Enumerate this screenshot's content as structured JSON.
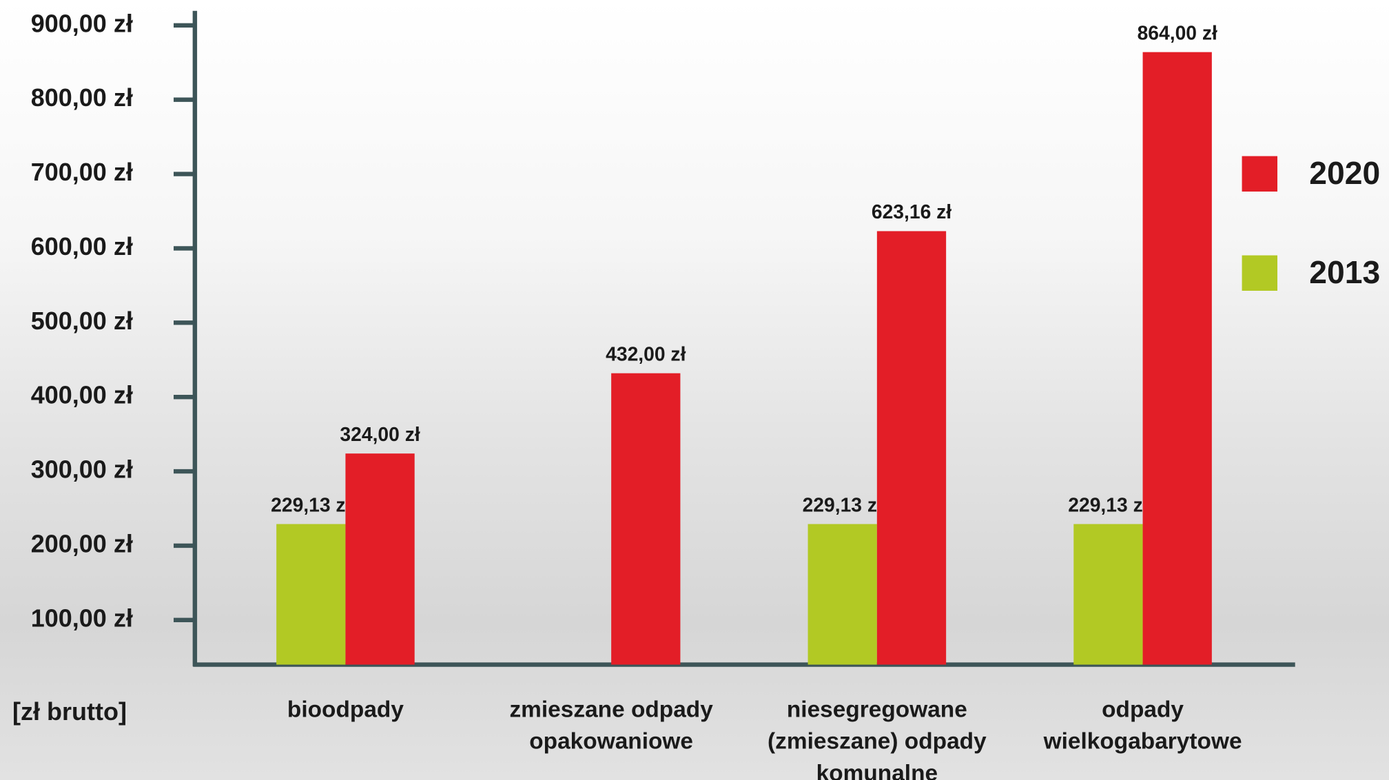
{
  "chart_data": {
    "type": "bar",
    "y_label": "[zł brutto]",
    "categories": [
      "bioodpady",
      "zmieszane odpady opakowaniowe",
      "niesegregowane (zmieszane) odpady komunalne",
      "odpady wielkogabarytowe"
    ],
    "series": [
      {
        "name": "2013",
        "color": "#b2c924",
        "values": [
          229.13,
          null,
          229.13,
          229.13
        ],
        "value_labels": [
          "229,13 zł",
          null,
          "229,13 zł",
          "229,13 zł"
        ]
      },
      {
        "name": "2020",
        "color": "#e31e27",
        "values": [
          324,
          432,
          623.16,
          864
        ],
        "value_labels": [
          "324,00 zł",
          "432,00 zł",
          "623,16 zł",
          "864,00 zł"
        ]
      }
    ],
    "ylim": [
      40,
      910
    ],
    "yticks": [
      {
        "value": 100,
        "label": "100,00 zł"
      },
      {
        "value": 200,
        "label": "200,00 zł"
      },
      {
        "value": 300,
        "label": "300,00 zł"
      },
      {
        "value": 400,
        "label": "400,00 zł"
      },
      {
        "value": 500,
        "label": "500,00 zł"
      },
      {
        "value": 600,
        "label": "600,00 zł"
      },
      {
        "value": 700,
        "label": "700,00 zł"
      },
      {
        "value": 800,
        "label": "800,00 zł"
      },
      {
        "value": 900,
        "label": "900,00 zł"
      }
    ],
    "legend": "right"
  }
}
